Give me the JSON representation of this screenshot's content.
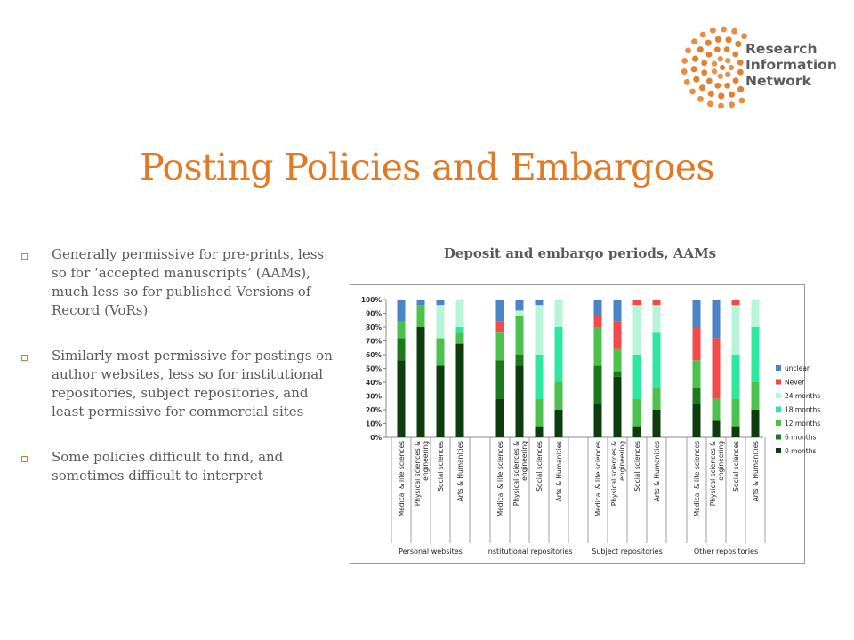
{
  "logo": {
    "lines": [
      "Research",
      "Information",
      "Network"
    ],
    "brand_color": "#e07a26"
  },
  "slide": {
    "title": "Posting Policies and Embargoes"
  },
  "bullets": [
    "Generally permissive for pre-prints, less so for ‘accepted manuscripts’ (AAMs), much less so for published Versions of Record (VoRs)",
    "Similarly most permissive for postings on author websites, less so for institutional repositories, subject repositories, and least permissive for commercial sites",
    "Some policies difficult to find, and sometimes difficult to interpret"
  ],
  "chart_data": {
    "type": "bar",
    "stacked": true,
    "title": "Deposit and embargo periods, AAMs",
    "ylim": [
      0,
      100
    ],
    "y_ticks": [
      "0%",
      "10%",
      "20%",
      "30%",
      "40%",
      "50%",
      "60%",
      "70%",
      "80%",
      "90%",
      "100%"
    ],
    "grid": false,
    "legend_position": "right",
    "groups": [
      "Personal websites",
      "Institutional repositories",
      "Subject repositories",
      "Other repositories"
    ],
    "categories": [
      "Medical & life sciences",
      "Physical sciences & engineering",
      "Social sciences",
      "Arts & Humanities"
    ],
    "series": [
      {
        "name": "0 months",
        "color": "#0d3d0d",
        "values": [
          [
            56,
            80,
            52,
            68
          ],
          [
            28,
            52,
            8,
            20
          ],
          [
            24,
            44,
            8,
            20
          ],
          [
            24,
            12,
            8,
            20
          ]
        ]
      },
      {
        "name": "6 months",
        "color": "#1c7a1c",
        "values": [
          [
            16,
            0,
            0,
            0
          ],
          [
            28,
            8,
            0,
            0
          ],
          [
            28,
            4,
            0,
            0
          ],
          [
            12,
            0,
            0,
            0
          ]
        ]
      },
      {
        "name": "12 months",
        "color": "#4cc24c",
        "values": [
          [
            12,
            16,
            20,
            8
          ],
          [
            20,
            28,
            20,
            20
          ],
          [
            28,
            16,
            20,
            16
          ],
          [
            20,
            16,
            20,
            20
          ]
        ]
      },
      {
        "name": "18 months",
        "color": "#2ee8a0",
        "values": [
          [
            0,
            0,
            0,
            4
          ],
          [
            0,
            0,
            32,
            40
          ],
          [
            0,
            0,
            32,
            40
          ],
          [
            0,
            0,
            32,
            40
          ]
        ]
      },
      {
        "name": "24 months",
        "color": "#b6f5d8",
        "values": [
          [
            0,
            0,
            24,
            20
          ],
          [
            0,
            4,
            36,
            20
          ],
          [
            0,
            0,
            36,
            20
          ],
          [
            0,
            0,
            36,
            20
          ]
        ]
      },
      {
        "name": "Never",
        "color": "#f24a4a",
        "values": [
          [
            0,
            0,
            0,
            0
          ],
          [
            8,
            0,
            0,
            0
          ],
          [
            8,
            20,
            4,
            4
          ],
          [
            24,
            44,
            4,
            0
          ]
        ]
      },
      {
        "name": "unclear",
        "color": "#4a83c6",
        "values": [
          [
            16,
            4,
            4,
            0
          ],
          [
            16,
            8,
            4,
            0
          ],
          [
            12,
            16,
            0,
            0
          ],
          [
            20,
            28,
            0,
            0
          ]
        ]
      }
    ]
  }
}
